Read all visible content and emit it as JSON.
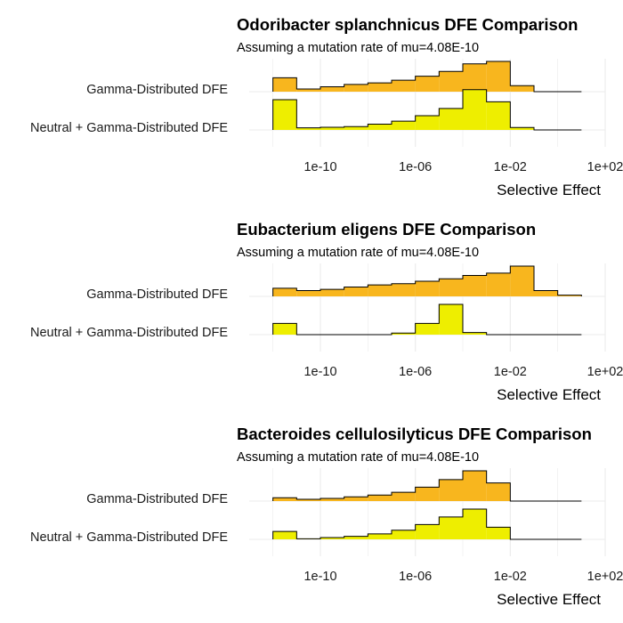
{
  "colors": {
    "gamma_fill": "#F8B61E",
    "neutral_gamma_fill": "#EEEE00",
    "outline": "#000000",
    "grid": "#EBEBEB"
  },
  "chart_data": [
    {
      "type": "bar",
      "subtype": "ridgeline-histogram",
      "title": "Odoribacter splanchnicus DFE Comparison",
      "subtitle": "Assuming a mutation rate of mu=4.08E-10",
      "xlabel": "Selective Effect",
      "ylabel": "",
      "x_scale": "log10",
      "x_range": [
        "1e-13",
        "1e+02"
      ],
      "x_ticks": [
        "1e-10",
        "1e-06",
        "1e-02",
        "1e+02"
      ],
      "grid": true,
      "bin_edges": [
        "1e-12",
        "1e-11",
        "1e-10",
        "1e-09",
        "1e-08",
        "1e-07",
        "1e-06",
        "1e-05",
        "1e-04",
        "1e-03",
        "1e-02",
        "1e-01",
        "1e+00",
        "1e+01"
      ],
      "series": [
        {
          "name": "Gamma-Distributed DFE",
          "values": [
            0.46,
            0.09,
            0.16,
            0.24,
            0.29,
            0.38,
            0.51,
            0.67,
            0.92,
            1.0,
            0.2,
            0.0,
            0.0
          ]
        },
        {
          "name": "Neutral + Gamma-Distributed DFE",
          "values": [
            1.0,
            0.07,
            0.09,
            0.11,
            0.19,
            0.29,
            0.47,
            0.71,
            1.33,
            0.93,
            0.08,
            0.0,
            0.0
          ]
        }
      ]
    },
    {
      "type": "bar",
      "subtype": "ridgeline-histogram",
      "title": "Eubacterium eligens DFE Comparison",
      "subtitle": "Assuming a mutation rate of mu=4.08E-10",
      "xlabel": "Selective Effect",
      "ylabel": "",
      "x_scale": "log10",
      "x_range": [
        "1e-13",
        "1e+02"
      ],
      "x_ticks": [
        "1e-10",
        "1e-06",
        "1e-02",
        "1e+02"
      ],
      "grid": true,
      "bin_edges": [
        "1e-12",
        "1e-11",
        "1e-10",
        "1e-09",
        "1e-08",
        "1e-07",
        "1e-06",
        "1e-05",
        "1e-04",
        "1e-03",
        "1e-02",
        "1e-01",
        "1e+00",
        "1e+01"
      ],
      "series": [
        {
          "name": "Gamma-Distributed DFE",
          "values": [
            0.27,
            0.19,
            0.23,
            0.31,
            0.38,
            0.42,
            0.5,
            0.58,
            0.69,
            0.77,
            1.0,
            0.19,
            0.04
          ]
        },
        {
          "name": "Neutral + Gamma-Distributed DFE",
          "values": [
            0.37,
            0.0,
            0.0,
            0.0,
            0.0,
            0.05,
            0.37,
            1.0,
            0.07,
            0.0,
            0.0,
            0.0,
            0.0
          ]
        }
      ]
    },
    {
      "type": "bar",
      "subtype": "ridgeline-histogram",
      "title": "Bacteroides cellulosilyticus DFE Comparison",
      "subtitle": "Assuming a mutation rate of mu=4.08E-10",
      "xlabel": "Selective Effect",
      "ylabel": "",
      "x_scale": "log10",
      "x_range": [
        "1e-13",
        "1e+02"
      ],
      "x_ticks": [
        "1e-10",
        "1e-06",
        "1e-02",
        "1e+02"
      ],
      "grid": true,
      "bin_edges": [
        "1e-12",
        "1e-11",
        "1e-10",
        "1e-09",
        "1e-08",
        "1e-07",
        "1e-06",
        "1e-05",
        "1e-04",
        "1e-03",
        "1e-02",
        "1e-01",
        "1e+00",
        "1e+01"
      ],
      "series": [
        {
          "name": "Gamma-Distributed DFE",
          "values": [
            0.11,
            0.06,
            0.09,
            0.14,
            0.2,
            0.29,
            0.46,
            0.71,
            1.0,
            0.6,
            0.0,
            0.0,
            0.0
          ]
        },
        {
          "name": "Neutral + Gamma-Distributed DFE",
          "values": [
            0.26,
            0.02,
            0.06,
            0.1,
            0.18,
            0.3,
            0.49,
            0.74,
            1.0,
            0.4,
            0.0,
            0.0,
            0.0
          ]
        }
      ]
    }
  ]
}
